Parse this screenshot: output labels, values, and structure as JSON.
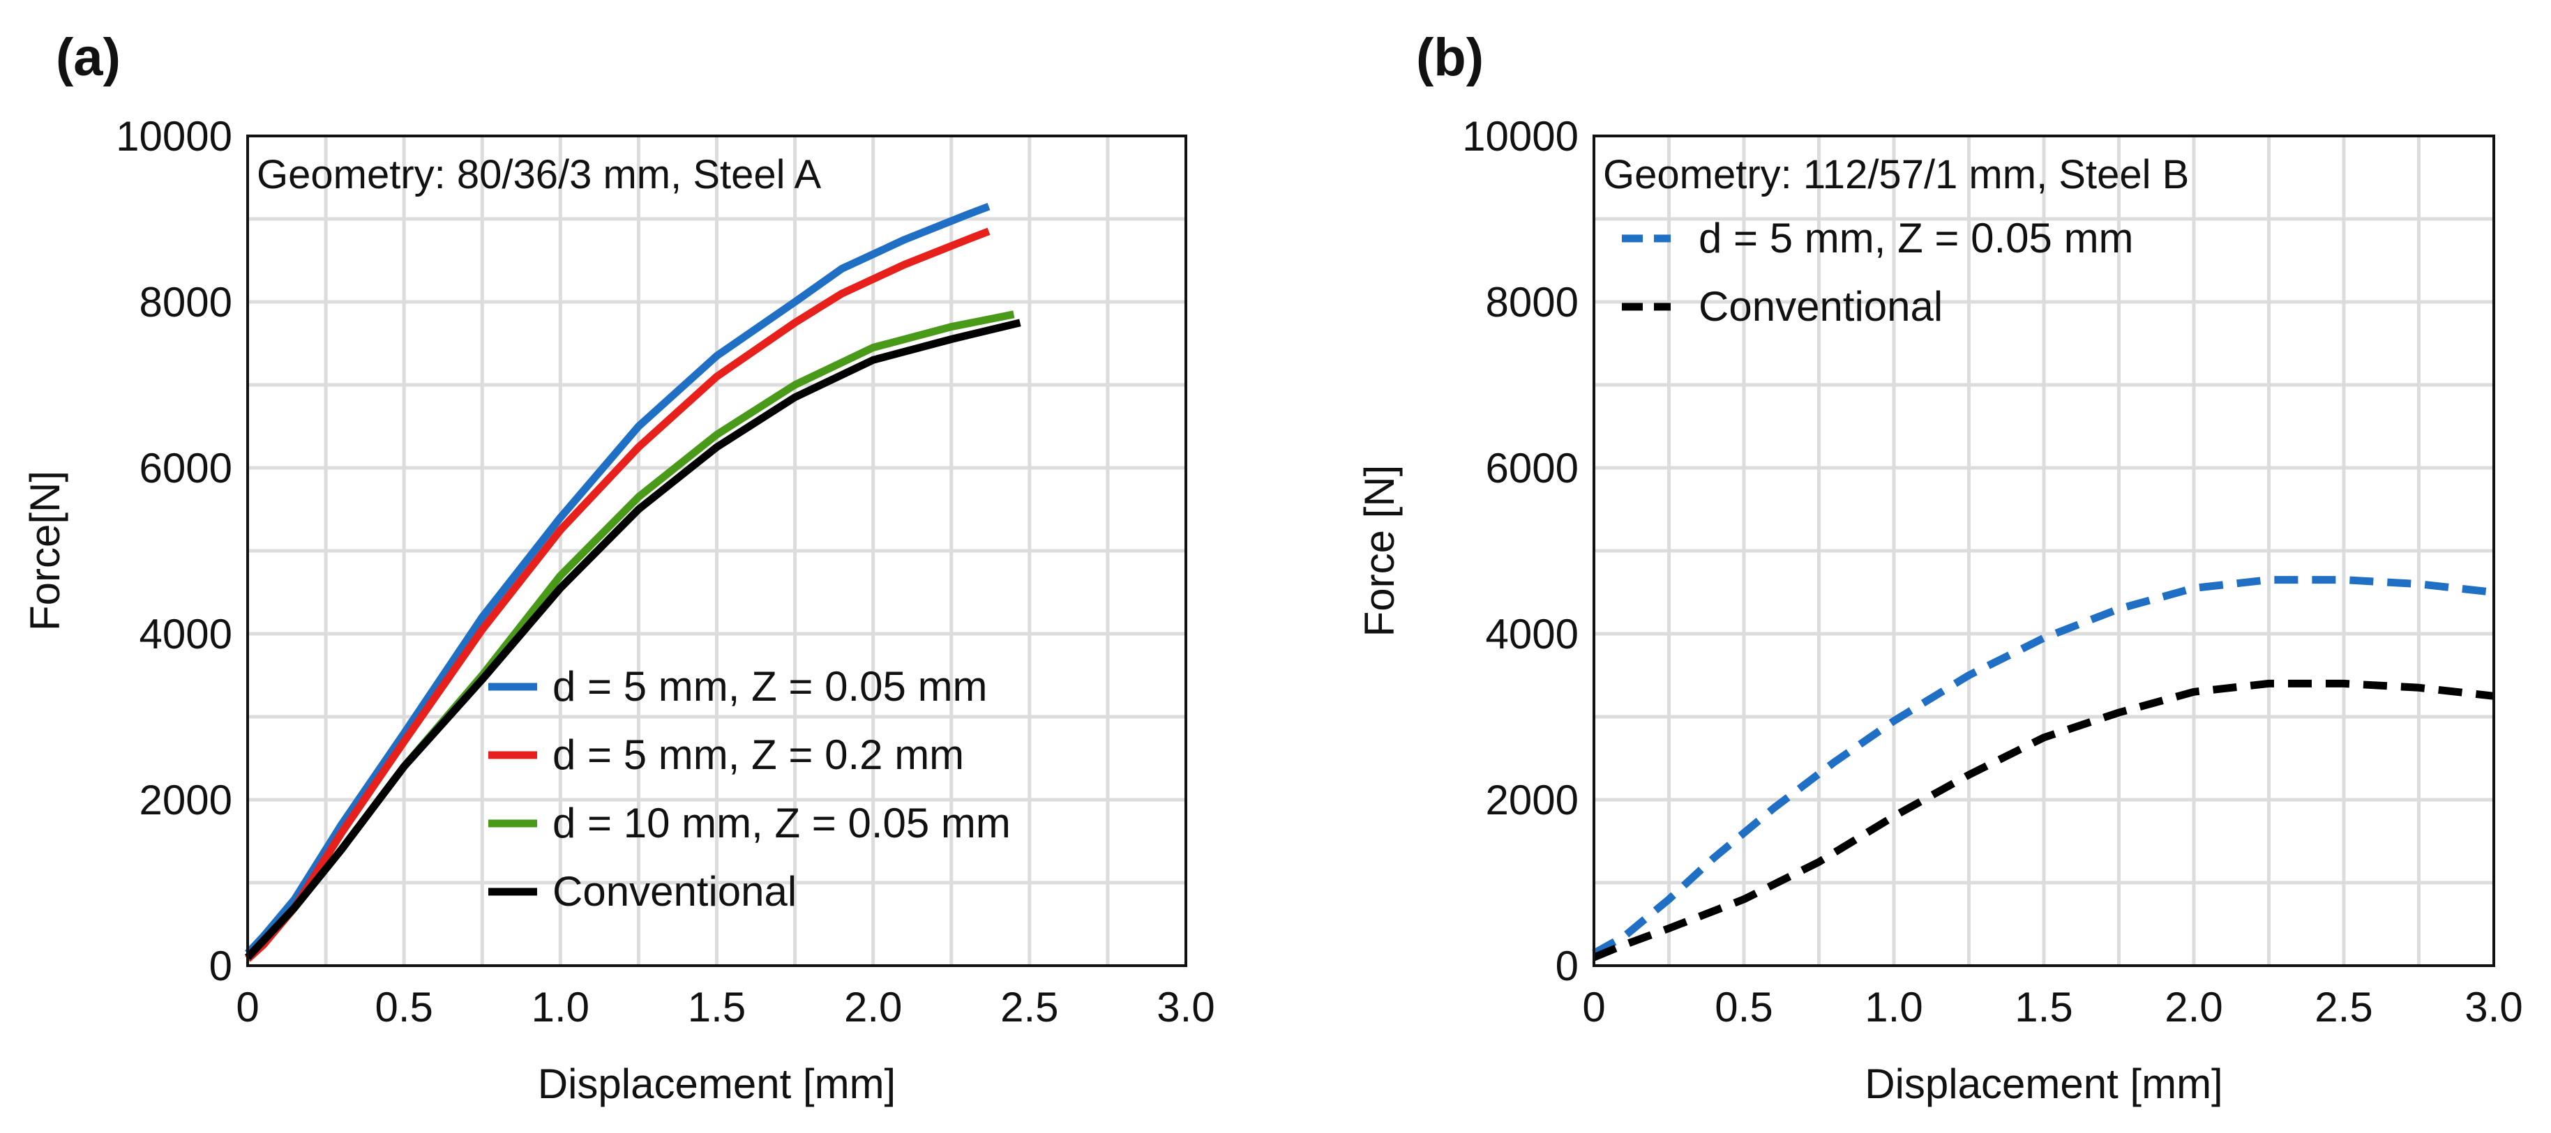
{
  "chart_data": [
    {
      "type": "line",
      "panel_label": "(a)",
      "annotation": "Geometry:  80/36/3 mm, Steel A",
      "xlabel": "Displacement [mm]",
      "ylabel": "Force[N]",
      "xlim": [
        0,
        3.0
      ],
      "ylim": [
        0,
        10000
      ],
      "x_ticks": [
        "0",
        "0.5",
        "1.0",
        "1.5",
        "2.0",
        "2.5",
        "3.0"
      ],
      "y_ticks": [
        "0",
        "2000",
        "4000",
        "6000",
        "8000",
        "10000"
      ],
      "grid": true,
      "legend_position": "bottom-right",
      "series": [
        {
          "name": "d = 5 mm, Z = 0.05 mm",
          "color": "#1f6fc5",
          "dash": "solid",
          "x": [
            0,
            0.05,
            0.15,
            0.3,
            0.5,
            0.75,
            1.0,
            1.25,
            1.5,
            1.75,
            1.9,
            2.1,
            2.3,
            2.37
          ],
          "y": [
            150,
            350,
            800,
            1700,
            2800,
            4200,
            5400,
            6500,
            7350,
            8000,
            8400,
            8750,
            9050,
            9150
          ]
        },
        {
          "name": "d = 5 mm, Z = 0.2 mm",
          "color": "#e8201c",
          "dash": "solid",
          "x": [
            0,
            0.05,
            0.15,
            0.3,
            0.5,
            0.75,
            1.0,
            1.25,
            1.5,
            1.75,
            1.9,
            2.1,
            2.3,
            2.37
          ],
          "y": [
            80,
            250,
            700,
            1600,
            2700,
            4050,
            5250,
            6250,
            7100,
            7750,
            8100,
            8450,
            8750,
            8850
          ]
        },
        {
          "name": "d = 10 mm, Z = 0.05 mm",
          "color": "#4a9a1a",
          "dash": "solid",
          "x": [
            0,
            0.05,
            0.15,
            0.3,
            0.5,
            0.75,
            1.0,
            1.25,
            1.5,
            1.75,
            2.0,
            2.25,
            2.45
          ],
          "y": [
            100,
            300,
            700,
            1400,
            2400,
            3500,
            4700,
            5650,
            6400,
            7000,
            7450,
            7700,
            7850
          ]
        },
        {
          "name": "Conventional",
          "color": "#000000",
          "dash": "solid",
          "x": [
            0,
            0.05,
            0.15,
            0.3,
            0.5,
            0.75,
            1.0,
            1.25,
            1.5,
            1.75,
            2.0,
            2.25,
            2.47
          ],
          "y": [
            100,
            300,
            700,
            1400,
            2400,
            3450,
            4550,
            5500,
            6250,
            6850,
            7300,
            7550,
            7750
          ]
        }
      ]
    },
    {
      "type": "line",
      "panel_label": "(b)",
      "annotation": "Geometry:  112/57/1 mm, Steel B",
      "xlabel": "Displacement [mm]",
      "ylabel": "Force [N]",
      "xlim": [
        0,
        3.0
      ],
      "ylim": [
        0,
        10000
      ],
      "x_ticks": [
        "0",
        "0.5",
        "1.0",
        "1.5",
        "2.0",
        "2.5",
        "3.0"
      ],
      "y_ticks": [
        "0",
        "2000",
        "4000",
        "6000",
        "8000",
        "10000"
      ],
      "grid": true,
      "legend_position": "top-left",
      "series": [
        {
          "name": "d = 5 mm, Z = 0.05 mm",
          "color": "#1f6fc5",
          "dash": "dashed",
          "x": [
            0,
            0.1,
            0.25,
            0.4,
            0.6,
            0.8,
            1.0,
            1.25,
            1.5,
            1.75,
            2.0,
            2.25,
            2.5,
            2.75,
            3.0
          ],
          "y": [
            150,
            350,
            800,
            1300,
            1900,
            2450,
            2950,
            3500,
            3950,
            4300,
            4550,
            4650,
            4650,
            4600,
            4500
          ]
        },
        {
          "name": "Conventional",
          "color": "#000000",
          "dash": "dashed",
          "x": [
            0,
            0.1,
            0.25,
            0.5,
            0.75,
            1.0,
            1.25,
            1.5,
            1.75,
            2.0,
            2.25,
            2.5,
            2.75,
            3.0
          ],
          "y": [
            100,
            250,
            450,
            800,
            1250,
            1800,
            2300,
            2750,
            3050,
            3300,
            3400,
            3400,
            3350,
            3250
          ]
        }
      ]
    }
  ]
}
